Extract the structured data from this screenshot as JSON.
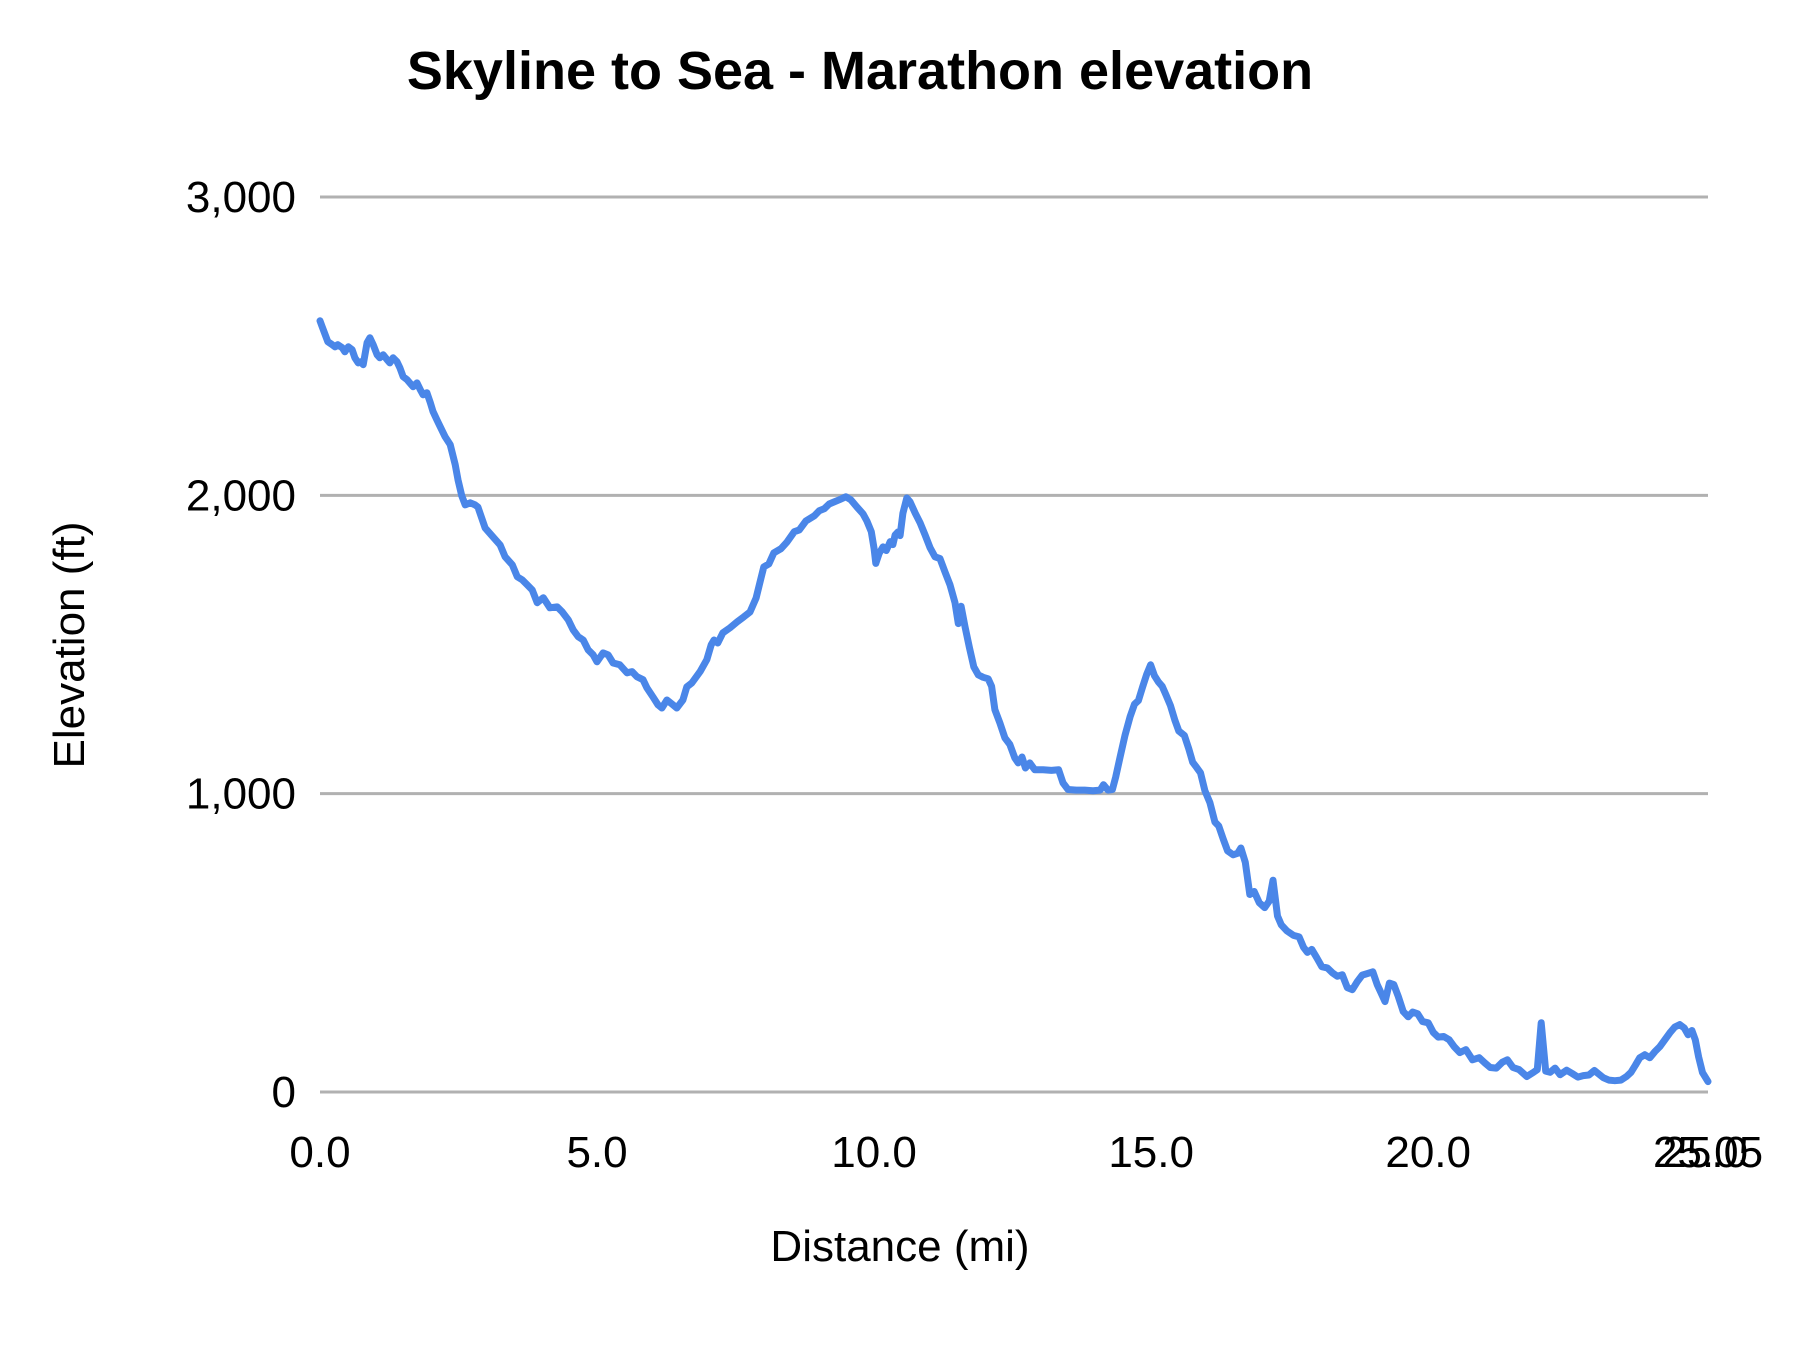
{
  "page": {
    "background": "#ffffff"
  },
  "chart_data": {
    "type": "line",
    "title": "Skyline to Sea - Marathon elevation",
    "xlabel": "Distance (mi)",
    "ylabel": "Elevation (ft)",
    "xlim": [
      0,
      25.05
    ],
    "ylim": [
      0,
      3000
    ],
    "grid": "horizontal-only",
    "legend": "none",
    "colors": {
      "line": "#4a86e8",
      "grid": "#b1b1b1",
      "text": "#000000"
    },
    "x_ticks": [
      {
        "value": 0.0,
        "label": "0.0"
      },
      {
        "value": 5.0,
        "label": "5.0"
      },
      {
        "value": 10.0,
        "label": "10.0"
      },
      {
        "value": 15.0,
        "label": "15.0"
      },
      {
        "value": 20.0,
        "label": "20.0"
      },
      {
        "value": 25.0,
        "label": "25.0"
      },
      {
        "value": 25.05,
        "label": "25.05"
      }
    ],
    "y_ticks": [
      {
        "value": 0,
        "label": "0"
      },
      {
        "value": 1000,
        "label": "1,000"
      },
      {
        "value": 2000,
        "label": "2,000"
      },
      {
        "value": 3000,
        "label": "3,000"
      }
    ],
    "series": [
      {
        "name": "Elevation (ft)",
        "points": [
          [
            0.0,
            2585
          ],
          [
            0.04,
            2565
          ],
          [
            0.09,
            2540
          ],
          [
            0.14,
            2515
          ],
          [
            0.22,
            2505
          ],
          [
            0.27,
            2498
          ],
          [
            0.32,
            2505
          ],
          [
            0.4,
            2495
          ],
          [
            0.45,
            2481
          ],
          [
            0.51,
            2498
          ],
          [
            0.58,
            2488
          ],
          [
            0.63,
            2461
          ],
          [
            0.69,
            2444
          ],
          [
            0.74,
            2448
          ],
          [
            0.78,
            2438
          ],
          [
            0.85,
            2512
          ],
          [
            0.9,
            2528
          ],
          [
            0.96,
            2505
          ],
          [
            1.03,
            2471
          ],
          [
            1.08,
            2461
          ],
          [
            1.14,
            2471
          ],
          [
            1.21,
            2455
          ],
          [
            1.26,
            2444
          ],
          [
            1.32,
            2461
          ],
          [
            1.39,
            2448
          ],
          [
            1.44,
            2428
          ],
          [
            1.5,
            2398
          ],
          [
            1.57,
            2388
          ],
          [
            1.63,
            2375
          ],
          [
            1.68,
            2364
          ],
          [
            1.75,
            2377
          ],
          [
            1.81,
            2354
          ],
          [
            1.86,
            2337
          ],
          [
            1.93,
            2344
          ],
          [
            1.99,
            2311
          ],
          [
            2.04,
            2281
          ],
          [
            2.11,
            2253
          ],
          [
            2.17,
            2230
          ],
          [
            2.26,
            2196
          ],
          [
            2.35,
            2170
          ],
          [
            2.44,
            2103
          ],
          [
            2.49,
            2052
          ],
          [
            2.56,
            1998
          ],
          [
            2.62,
            1968
          ],
          [
            2.71,
            1975
          ],
          [
            2.8,
            1968
          ],
          [
            2.85,
            1961
          ],
          [
            2.98,
            1891
          ],
          [
            3.12,
            1861
          ],
          [
            3.25,
            1834
          ],
          [
            3.34,
            1794
          ],
          [
            3.47,
            1767
          ],
          [
            3.56,
            1727
          ],
          [
            3.65,
            1717
          ],
          [
            3.74,
            1700
          ],
          [
            3.83,
            1683
          ],
          [
            3.92,
            1640
          ],
          [
            4.03,
            1657
          ],
          [
            4.15,
            1623
          ],
          [
            4.28,
            1626
          ],
          [
            4.37,
            1610
          ],
          [
            4.48,
            1583
          ],
          [
            4.57,
            1549
          ],
          [
            4.66,
            1526
          ],
          [
            4.75,
            1515
          ],
          [
            4.84,
            1482
          ],
          [
            4.93,
            1465
          ],
          [
            5.0,
            1442
          ],
          [
            5.11,
            1472
          ],
          [
            5.2,
            1465
          ],
          [
            5.29,
            1438
          ],
          [
            5.41,
            1432
          ],
          [
            5.54,
            1405
          ],
          [
            5.63,
            1409
          ],
          [
            5.72,
            1392
          ],
          [
            5.83,
            1382
          ],
          [
            5.9,
            1355
          ],
          [
            6.01,
            1324
          ],
          [
            6.1,
            1298
          ],
          [
            6.17,
            1287
          ],
          [
            6.26,
            1314
          ],
          [
            6.35,
            1301
          ],
          [
            6.44,
            1287
          ],
          [
            6.55,
            1314
          ],
          [
            6.62,
            1358
          ],
          [
            6.71,
            1371
          ],
          [
            6.86,
            1409
          ],
          [
            6.98,
            1449
          ],
          [
            7.06,
            1499
          ],
          [
            7.11,
            1515
          ],
          [
            7.18,
            1505
          ],
          [
            7.27,
            1539
          ],
          [
            7.4,
            1556
          ],
          [
            7.53,
            1576
          ],
          [
            7.65,
            1593
          ],
          [
            7.76,
            1609
          ],
          [
            7.87,
            1656
          ],
          [
            7.96,
            1724
          ],
          [
            8.01,
            1760
          ],
          [
            8.1,
            1770
          ],
          [
            8.19,
            1807
          ],
          [
            8.32,
            1821
          ],
          [
            8.43,
            1844
          ],
          [
            8.56,
            1878
          ],
          [
            8.65,
            1884
          ],
          [
            8.77,
            1914
          ],
          [
            8.92,
            1931
          ],
          [
            9.01,
            1948
          ],
          [
            9.1,
            1955
          ],
          [
            9.19,
            1971
          ],
          [
            9.28,
            1978
          ],
          [
            9.37,
            1985
          ],
          [
            9.49,
            1995
          ],
          [
            9.58,
            1985
          ],
          [
            9.69,
            1961
          ],
          [
            9.8,
            1938
          ],
          [
            9.87,
            1914
          ],
          [
            9.95,
            1878
          ],
          [
            10.0,
            1821
          ],
          [
            10.03,
            1772
          ],
          [
            10.09,
            1805
          ],
          [
            10.16,
            1827
          ],
          [
            10.22,
            1815
          ],
          [
            10.29,
            1845
          ],
          [
            10.34,
            1835
          ],
          [
            10.38,
            1867
          ],
          [
            10.43,
            1877
          ],
          [
            10.47,
            1865
          ],
          [
            10.52,
            1940
          ],
          [
            10.59,
            1991
          ],
          [
            10.65,
            1978
          ],
          [
            10.74,
            1941
          ],
          [
            10.83,
            1908
          ],
          [
            10.92,
            1867
          ],
          [
            11.01,
            1824
          ],
          [
            11.1,
            1794
          ],
          [
            11.19,
            1788
          ],
          [
            11.28,
            1743
          ],
          [
            11.37,
            1700
          ],
          [
            11.46,
            1640
          ],
          [
            11.52,
            1570
          ],
          [
            11.57,
            1628
          ],
          [
            11.64,
            1560
          ],
          [
            11.72,
            1490
          ],
          [
            11.8,
            1425
          ],
          [
            11.88,
            1398
          ],
          [
            11.97,
            1390
          ],
          [
            12.06,
            1385
          ],
          [
            12.12,
            1360
          ],
          [
            12.18,
            1281
          ],
          [
            12.27,
            1237
          ],
          [
            12.36,
            1187
          ],
          [
            12.45,
            1165
          ],
          [
            12.54,
            1120
          ],
          [
            12.6,
            1103
          ],
          [
            12.67,
            1123
          ],
          [
            12.73,
            1086
          ],
          [
            12.81,
            1103
          ],
          [
            12.9,
            1080
          ],
          [
            13.05,
            1080
          ],
          [
            13.2,
            1078
          ],
          [
            13.33,
            1080
          ],
          [
            13.41,
            1036
          ],
          [
            13.5,
            1014
          ],
          [
            13.65,
            1012
          ],
          [
            13.8,
            1012
          ],
          [
            13.95,
            1010
          ],
          [
            14.08,
            1012
          ],
          [
            14.14,
            1030
          ],
          [
            14.22,
            1012
          ],
          [
            14.3,
            1014
          ],
          [
            14.36,
            1056
          ],
          [
            14.44,
            1123
          ],
          [
            14.53,
            1197
          ],
          [
            14.62,
            1258
          ],
          [
            14.7,
            1300
          ],
          [
            14.77,
            1312
          ],
          [
            14.85,
            1360
          ],
          [
            14.92,
            1400
          ],
          [
            14.99,
            1432
          ],
          [
            15.06,
            1395
          ],
          [
            15.13,
            1375
          ],
          [
            15.2,
            1360
          ],
          [
            15.27,
            1330
          ],
          [
            15.35,
            1295
          ],
          [
            15.43,
            1245
          ],
          [
            15.5,
            1210
          ],
          [
            15.6,
            1195
          ],
          [
            15.68,
            1150
          ],
          [
            15.75,
            1105
          ],
          [
            15.82,
            1088
          ],
          [
            15.89,
            1070
          ],
          [
            15.97,
            1010
          ],
          [
            16.06,
            970
          ],
          [
            16.15,
            905
          ],
          [
            16.22,
            892
          ],
          [
            16.3,
            848
          ],
          [
            16.38,
            808
          ],
          [
            16.48,
            795
          ],
          [
            16.56,
            800
          ],
          [
            16.62,
            818
          ],
          [
            16.7,
            770
          ],
          [
            16.78,
            662
          ],
          [
            16.86,
            672
          ],
          [
            16.95,
            635
          ],
          [
            17.05,
            618
          ],
          [
            17.13,
            640
          ],
          [
            17.2,
            710
          ],
          [
            17.28,
            590
          ],
          [
            17.35,
            560
          ],
          [
            17.45,
            540
          ],
          [
            17.57,
            525
          ],
          [
            17.67,
            520
          ],
          [
            17.75,
            485
          ],
          [
            17.82,
            468
          ],
          [
            17.9,
            478
          ],
          [
            17.99,
            450
          ],
          [
            18.08,
            420
          ],
          [
            18.18,
            416
          ],
          [
            18.27,
            400
          ],
          [
            18.36,
            388
          ],
          [
            18.45,
            393
          ],
          [
            18.54,
            350
          ],
          [
            18.63,
            343
          ],
          [
            18.72,
            370
          ],
          [
            18.81,
            392
          ],
          [
            18.9,
            397
          ],
          [
            19.0,
            403
          ],
          [
            19.08,
            360
          ],
          [
            19.15,
            332
          ],
          [
            19.22,
            303
          ],
          [
            19.3,
            365
          ],
          [
            19.38,
            360
          ],
          [
            19.46,
            320
          ],
          [
            19.55,
            270
          ],
          [
            19.64,
            252
          ],
          [
            19.72,
            268
          ],
          [
            19.81,
            262
          ],
          [
            19.9,
            236
          ],
          [
            20.0,
            232
          ],
          [
            20.09,
            200
          ],
          [
            20.18,
            184
          ],
          [
            20.28,
            186
          ],
          [
            20.38,
            175
          ],
          [
            20.47,
            152
          ],
          [
            20.57,
            132
          ],
          [
            20.68,
            142
          ],
          [
            20.8,
            108
          ],
          [
            20.92,
            115
          ],
          [
            21.02,
            98
          ],
          [
            21.12,
            82
          ],
          [
            21.23,
            80
          ],
          [
            21.34,
            100
          ],
          [
            21.43,
            108
          ],
          [
            21.53,
            82
          ],
          [
            21.64,
            75
          ],
          [
            21.78,
            52
          ],
          [
            21.9,
            66
          ],
          [
            21.97,
            75
          ],
          [
            22.04,
            232
          ],
          [
            22.12,
            70
          ],
          [
            22.2,
            66
          ],
          [
            22.29,
            80
          ],
          [
            22.38,
            58
          ],
          [
            22.5,
            73
          ],
          [
            22.6,
            62
          ],
          [
            22.7,
            50
          ],
          [
            22.8,
            55
          ],
          [
            22.9,
            57
          ],
          [
            23.0,
            72
          ],
          [
            23.08,
            60
          ],
          [
            23.16,
            48
          ],
          [
            23.26,
            40
          ],
          [
            23.37,
            38
          ],
          [
            23.48,
            40
          ],
          [
            23.58,
            52
          ],
          [
            23.66,
            66
          ],
          [
            23.74,
            90
          ],
          [
            23.82,
            115
          ],
          [
            23.91,
            125
          ],
          [
            24.0,
            115
          ],
          [
            24.09,
            135
          ],
          [
            24.18,
            152
          ],
          [
            24.27,
            175
          ],
          [
            24.36,
            198
          ],
          [
            24.45,
            218
          ],
          [
            24.54,
            226
          ],
          [
            24.62,
            215
          ],
          [
            24.69,
            192
          ],
          [
            24.76,
            206
          ],
          [
            24.82,
            175
          ],
          [
            24.88,
            118
          ],
          [
            24.95,
            65
          ],
          [
            25.05,
            35
          ]
        ]
      }
    ]
  }
}
